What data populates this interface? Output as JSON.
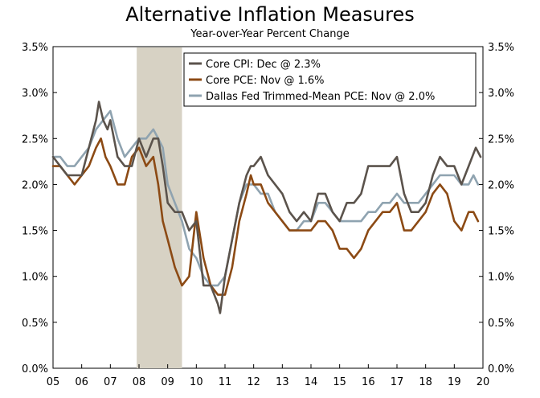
{
  "chart_data": {
    "type": "line",
    "title": "Alternative Inflation Measures",
    "subtitle": "Year-over-Year Percent Change",
    "xlabel": "",
    "ylabel": "",
    "xlim": [
      2005.0,
      2020.0
    ],
    "ylim": [
      0.0,
      3.5
    ],
    "y_ticks": [
      "0.0%",
      "0.5%",
      "1.0%",
      "1.5%",
      "2.0%",
      "2.5%",
      "3.0%",
      "3.5%"
    ],
    "y_tick_values": [
      0.0,
      0.5,
      1.0,
      1.5,
      2.0,
      2.5,
      3.0,
      3.5
    ],
    "x_ticks": [
      "05",
      "06",
      "07",
      "08",
      "09",
      "10",
      "11",
      "12",
      "13",
      "14",
      "15",
      "16",
      "17",
      "18",
      "19",
      "20"
    ],
    "x_tick_values": [
      2005,
      2006,
      2007,
      2008,
      2009,
      2010,
      2011,
      2012,
      2013,
      2014,
      2015,
      2016,
      2017,
      2018,
      2019,
      2020
    ],
    "recession": {
      "start": 2007.92,
      "end": 2009.5,
      "color": "#d7d2c4"
    },
    "grid": false,
    "legend_position": "top-right",
    "series": [
      {
        "name": "Core CPI: Dec @ 2.3%",
        "color": "#5b534c",
        "x": [
          2005.0,
          2005.25,
          2005.5,
          2005.75,
          2006.0,
          2006.25,
          2006.5,
          2006.6,
          2006.75,
          2006.9,
          2007.0,
          2007.25,
          2007.5,
          2007.75,
          2008.0,
          2008.25,
          2008.5,
          2008.67,
          2008.83,
          2009.0,
          2009.25,
          2009.5,
          2009.75,
          2010.0,
          2010.25,
          2010.5,
          2010.75,
          2010.83,
          2011.0,
          2011.25,
          2011.5,
          2011.75,
          2011.9,
          2012.0,
          2012.25,
          2012.5,
          2012.75,
          2013.0,
          2013.25,
          2013.5,
          2013.75,
          2014.0,
          2014.25,
          2014.5,
          2014.75,
          2015.0,
          2015.25,
          2015.5,
          2015.75,
          2016.0,
          2016.25,
          2016.5,
          2016.75,
          2017.0,
          2017.25,
          2017.5,
          2017.75,
          2018.0,
          2018.25,
          2018.5,
          2018.75,
          2019.0,
          2019.25,
          2019.5,
          2019.75,
          2019.92
        ],
        "values": [
          2.3,
          2.2,
          2.1,
          2.1,
          2.1,
          2.4,
          2.7,
          2.9,
          2.7,
          2.6,
          2.7,
          2.3,
          2.2,
          2.2,
          2.5,
          2.3,
          2.5,
          2.5,
          2.2,
          1.8,
          1.7,
          1.7,
          1.5,
          1.6,
          0.9,
          0.9,
          0.7,
          0.6,
          1.0,
          1.4,
          1.8,
          2.1,
          2.2,
          2.2,
          2.3,
          2.1,
          2.0,
          1.9,
          1.7,
          1.6,
          1.7,
          1.6,
          1.9,
          1.9,
          1.7,
          1.6,
          1.8,
          1.8,
          1.9,
          2.2,
          2.2,
          2.2,
          2.2,
          2.3,
          1.9,
          1.7,
          1.7,
          1.8,
          2.1,
          2.3,
          2.2,
          2.2,
          2.0,
          2.2,
          2.4,
          2.3
        ]
      },
      {
        "name": "Core PCE: Nov @ 1.6%",
        "color": "#8c4a14",
        "x": [
          2005.0,
          2005.25,
          2005.5,
          2005.75,
          2006.0,
          2006.25,
          2006.5,
          2006.67,
          2006.83,
          2007.0,
          2007.25,
          2007.5,
          2007.75,
          2008.0,
          2008.25,
          2008.5,
          2008.67,
          2008.83,
          2009.0,
          2009.25,
          2009.5,
          2009.75,
          2010.0,
          2010.25,
          2010.5,
          2010.75,
          2011.0,
          2011.25,
          2011.5,
          2011.75,
          2011.9,
          2012.0,
          2012.25,
          2012.5,
          2012.75,
          2013.0,
          2013.25,
          2013.5,
          2013.75,
          2014.0,
          2014.25,
          2014.5,
          2014.75,
          2015.0,
          2015.25,
          2015.5,
          2015.75,
          2016.0,
          2016.25,
          2016.5,
          2016.75,
          2017.0,
          2017.25,
          2017.5,
          2017.75,
          2018.0,
          2018.25,
          2018.5,
          2018.75,
          2019.0,
          2019.25,
          2019.5,
          2019.67,
          2019.83
        ],
        "values": [
          2.2,
          2.2,
          2.1,
          2.0,
          2.1,
          2.2,
          2.4,
          2.5,
          2.3,
          2.2,
          2.0,
          2.0,
          2.3,
          2.4,
          2.2,
          2.3,
          2.0,
          1.6,
          1.4,
          1.1,
          0.9,
          1.0,
          1.7,
          1.2,
          0.9,
          0.8,
          0.8,
          1.1,
          1.6,
          1.9,
          2.1,
          2.0,
          2.0,
          1.8,
          1.7,
          1.6,
          1.5,
          1.5,
          1.5,
          1.5,
          1.6,
          1.6,
          1.5,
          1.3,
          1.3,
          1.2,
          1.3,
          1.5,
          1.6,
          1.7,
          1.7,
          1.8,
          1.5,
          1.5,
          1.6,
          1.7,
          1.9,
          2.0,
          1.9,
          1.6,
          1.5,
          1.7,
          1.7,
          1.6
        ]
      },
      {
        "name": "Dallas Fed Trimmed-Mean PCE: Nov @ 2.0%",
        "color": "#8fa3b0",
        "x": [
          2005.0,
          2005.25,
          2005.5,
          2005.75,
          2006.0,
          2006.25,
          2006.5,
          2006.75,
          2007.0,
          2007.25,
          2007.5,
          2007.75,
          2008.0,
          2008.25,
          2008.5,
          2008.67,
          2008.83,
          2009.0,
          2009.25,
          2009.5,
          2009.75,
          2010.0,
          2010.25,
          2010.5,
          2010.75,
          2011.0,
          2011.25,
          2011.5,
          2011.75,
          2012.0,
          2012.25,
          2012.5,
          2012.75,
          2013.0,
          2013.25,
          2013.5,
          2013.75,
          2014.0,
          2014.25,
          2014.5,
          2014.75,
          2015.0,
          2015.25,
          2015.5,
          2015.75,
          2016.0,
          2016.25,
          2016.5,
          2016.75,
          2017.0,
          2017.25,
          2017.5,
          2017.75,
          2018.0,
          2018.25,
          2018.5,
          2018.75,
          2019.0,
          2019.25,
          2019.5,
          2019.67,
          2019.83
        ],
        "values": [
          2.3,
          2.3,
          2.2,
          2.2,
          2.3,
          2.4,
          2.6,
          2.7,
          2.8,
          2.5,
          2.3,
          2.4,
          2.5,
          2.5,
          2.6,
          2.5,
          2.4,
          2.0,
          1.8,
          1.6,
          1.3,
          1.2,
          1.0,
          0.9,
          0.9,
          1.0,
          1.4,
          1.8,
          2.0,
          2.0,
          1.9,
          1.9,
          1.7,
          1.6,
          1.5,
          1.5,
          1.6,
          1.6,
          1.8,
          1.8,
          1.7,
          1.6,
          1.6,
          1.6,
          1.6,
          1.7,
          1.7,
          1.8,
          1.8,
          1.9,
          1.8,
          1.8,
          1.8,
          1.9,
          2.0,
          2.1,
          2.1,
          2.1,
          2.0,
          2.0,
          2.1,
          2.0
        ]
      }
    ]
  }
}
